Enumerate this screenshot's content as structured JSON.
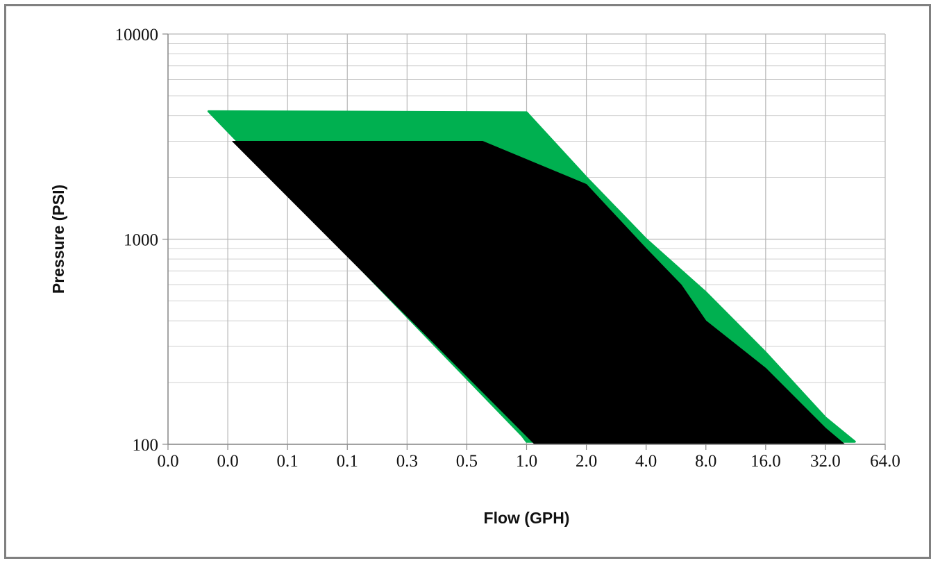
{
  "chart_data": {
    "type": "area",
    "title": "",
    "xlabel": "Flow (GPH)",
    "ylabel": "Pressure (PSI)",
    "x_scale": "log2",
    "y_scale": "log10",
    "x_ticks": [
      "0.0",
      "0.0",
      "0.1",
      "0.1",
      "0.3",
      "0.5",
      "1.0",
      "2.0",
      "4.0",
      "8.0",
      "16.0",
      "32.0",
      "64.0"
    ],
    "y_ticks": [
      "100",
      "1000",
      "10000"
    ],
    "xlim": [
      0.015625,
      64
    ],
    "ylim": [
      100,
      10000
    ],
    "grid": true,
    "legend": "none",
    "colors": {
      "outer_region": "#00b050",
      "inner_region": "#000000",
      "frame": "#808080"
    },
    "series": [
      {
        "color": "#00b050",
        "points": [
          [
            0.025,
            4200
          ],
          [
            1.0,
            4150
          ],
          [
            2.0,
            2000
          ],
          [
            4.0,
            1000
          ],
          [
            8.0,
            550
          ],
          [
            16.0,
            280
          ],
          [
            32.0,
            135
          ],
          [
            45.0,
            103
          ],
          [
            1.0,
            103
          ],
          [
            0.95,
            110
          ]
        ]
      },
      {
        "color": "#000000",
        "points": [
          [
            0.033,
            3000
          ],
          [
            0.6,
            3000
          ],
          [
            2.0,
            1850
          ],
          [
            4.0,
            900
          ],
          [
            6.0,
            600
          ],
          [
            8.0,
            400
          ],
          [
            16.0,
            235
          ],
          [
            32.0,
            120
          ],
          [
            40.0,
            100
          ],
          [
            1.1,
            100
          ]
        ]
      }
    ]
  }
}
